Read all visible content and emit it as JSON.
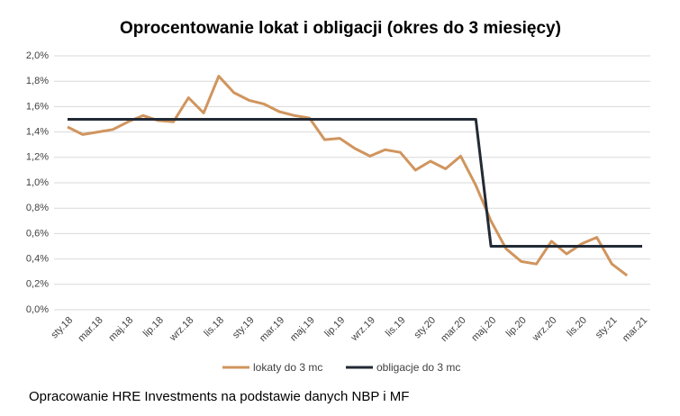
{
  "chart_data": {
    "type": "line",
    "title": "Oprocentowanie lokat i obligacji  (okres do 3 miesięcy)",
    "source": "Opracowanie HRE Investments na podstawie danych NBP i MF",
    "categories": [
      "sty.18",
      null,
      "mar.18",
      null,
      "maj.18",
      null,
      "lip.18",
      null,
      "wrz.18",
      null,
      "lis.18",
      null,
      "sty.19",
      null,
      "mar.19",
      null,
      "maj.19",
      null,
      "lip.19",
      null,
      "wrz.19",
      null,
      "lis.19",
      null,
      "sty.20",
      null,
      "mar.20",
      null,
      "maj.20",
      null,
      "lip.20",
      null,
      "wrz.20",
      null,
      "lis.20",
      null,
      "sty.21",
      null,
      "mar.21"
    ],
    "series": [
      {
        "name": "lokaty do 3 mc",
        "color": "#d0955e",
        "values": [
          1.44,
          1.38,
          1.4,
          1.42,
          1.48,
          1.53,
          1.49,
          1.48,
          1.67,
          1.55,
          1.84,
          1.71,
          1.65,
          1.62,
          1.56,
          1.53,
          1.51,
          1.34,
          1.35,
          1.27,
          1.21,
          1.26,
          1.24,
          1.1,
          1.17,
          1.11,
          1.21,
          0.98,
          0.7,
          0.48,
          0.38,
          0.36,
          0.54,
          0.44,
          0.52,
          0.57,
          0.36,
          0.27,
          null
        ]
      },
      {
        "name": "obligacje do 3 mc",
        "color": "#222a35",
        "values": [
          1.5,
          1.5,
          1.5,
          1.5,
          1.5,
          1.5,
          1.5,
          1.5,
          1.5,
          1.5,
          1.5,
          1.5,
          1.5,
          1.5,
          1.5,
          1.5,
          1.5,
          1.5,
          1.5,
          1.5,
          1.5,
          1.5,
          1.5,
          1.5,
          1.5,
          1.5,
          1.5,
          1.5,
          0.5,
          0.5,
          0.5,
          0.5,
          0.5,
          0.5,
          0.5,
          0.5,
          0.5,
          0.5,
          0.5
        ]
      }
    ],
    "ylim": [
      0,
      2
    ],
    "yticks": [
      {
        "value": 0,
        "label": "0,0%"
      },
      {
        "value": 0.2,
        "label": "0,2%"
      },
      {
        "value": 0.4,
        "label": "0,4%"
      },
      {
        "value": 0.6,
        "label": "0,6%"
      },
      {
        "value": 0.8,
        "label": "0,8%"
      },
      {
        "value": 1,
        "label": "1,0%"
      },
      {
        "value": 1.2,
        "label": "1,2%"
      },
      {
        "value": 1.4,
        "label": "1,4%"
      },
      {
        "value": 1.6,
        "label": "1,6%"
      },
      {
        "value": 1.8,
        "label": "1,8%"
      },
      {
        "value": 2,
        "label": "2,0%"
      }
    ],
    "grid": true,
    "legend": "bottom"
  }
}
